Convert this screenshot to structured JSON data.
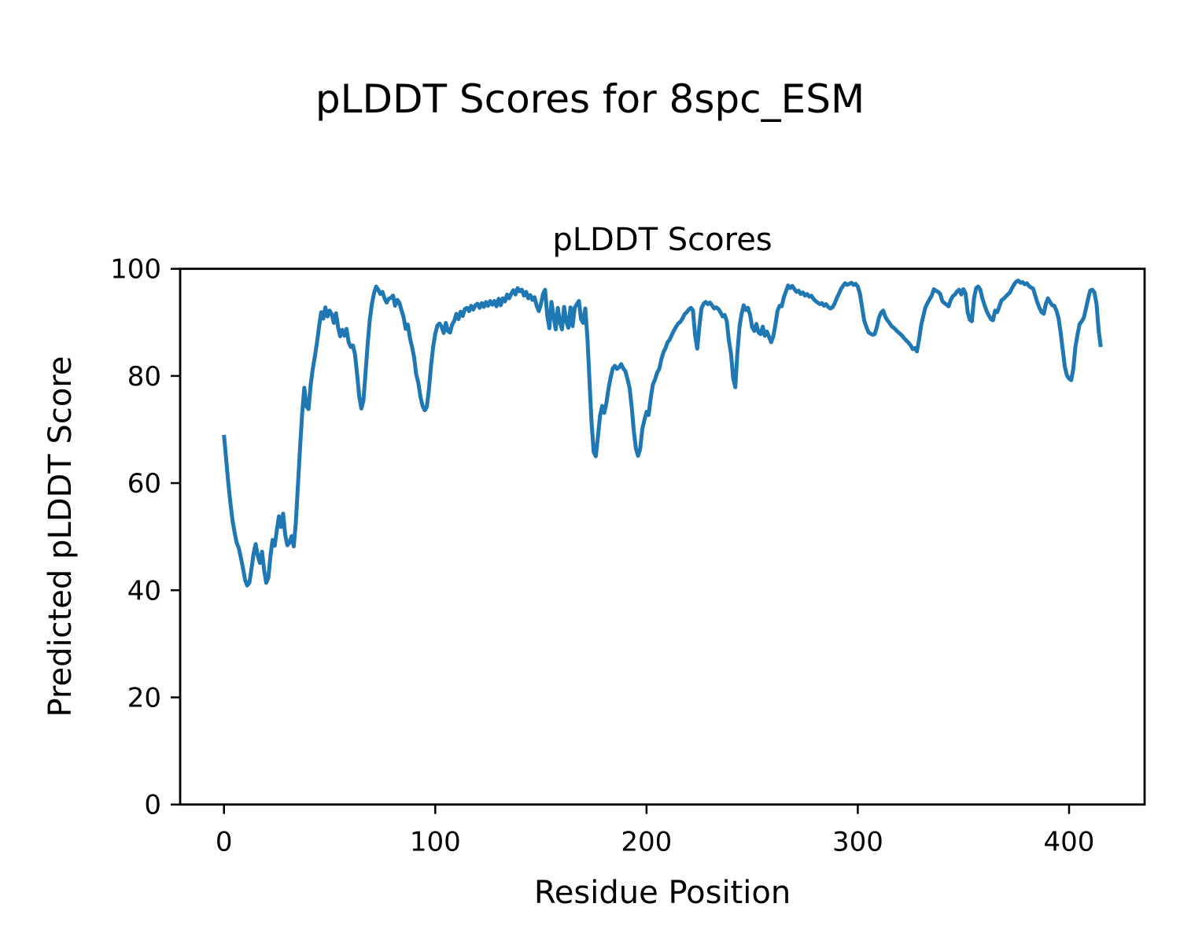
{
  "figure": {
    "suptitle": "pLDDT Scores for 8spc_ESM",
    "background": "#ffffff"
  },
  "chart_data": {
    "type": "line",
    "title": "pLDDT Scores",
    "xlabel": "Residue Position",
    "ylabel": "Predicted pLDDT Score",
    "xlim": [
      -20.75,
      435.75
    ],
    "ylim": [
      0,
      100
    ],
    "xticks": [
      0,
      100,
      200,
      300,
      400
    ],
    "yticks": [
      0,
      20,
      40,
      60,
      80,
      100
    ],
    "grid": false,
    "legend": null,
    "line_color": "#1f77b4",
    "line_width": 5,
    "series": [
      {
        "name": "pLDDT",
        "x0": 0,
        "dx": 1,
        "values": [
          69.0,
          64.6,
          60.2,
          56.4,
          53.1,
          50.8,
          48.9,
          47.9,
          46.1,
          44.1,
          41.9,
          40.9,
          41.4,
          43.9,
          46.8,
          48.6,
          46.4,
          45.1,
          47.2,
          43.7,
          41.4,
          42.3,
          46.4,
          49.4,
          48.3,
          51.2,
          53.8,
          51.8,
          54.3,
          50.3,
          48.4,
          48.9,
          50.1,
          48.2,
          52.5,
          59.5,
          66.5,
          73.0,
          77.8,
          74.3,
          73.8,
          78.2,
          81.2,
          83.6,
          86.2,
          89.2,
          91.9,
          90.7,
          92.8,
          91.1,
          92.2,
          91.5,
          89.9,
          91.7,
          89.1,
          87.4,
          88.6,
          87.5,
          88.8,
          86.3,
          85.4,
          85.7,
          84.1,
          80.4,
          76.3,
          73.9,
          75.4,
          80.6,
          86.0,
          90.4,
          93.4,
          95.4,
          96.7,
          96.1,
          95.3,
          95.7,
          94.5,
          93.7,
          94.4,
          94.6,
          95.0,
          93.1,
          94.2,
          93.7,
          92.3,
          91.0,
          88.8,
          89.6,
          87.1,
          85.4,
          83.5,
          80.3,
          78.7,
          76.1,
          74.4,
          73.6,
          74.2,
          77.4,
          81.9,
          85.4,
          87.9,
          89.4,
          89.8,
          89.2,
          88.0,
          89.9,
          88.4,
          88.1,
          89.6,
          90.3,
          91.6,
          90.6,
          92.0,
          91.2,
          92.5,
          92.7,
          92.1,
          93.1,
          92.4,
          93.2,
          93.5,
          92.7,
          93.6,
          92.9,
          93.8,
          93.1,
          94.0,
          93.3,
          94.0,
          93.0,
          94.4,
          93.2,
          94.5,
          93.9,
          95.2,
          94.5,
          95.4,
          96.0,
          95.2,
          96.4,
          95.8,
          96.1,
          95.0,
          95.7,
          94.5,
          95.1,
          94.2,
          94.7,
          93.1,
          92.1,
          93.4,
          95.3,
          96.1,
          91.4,
          88.9,
          93.8,
          91.1,
          88.7,
          92.7,
          90.1,
          88.7,
          92.9,
          90.2,
          89.0,
          92.8,
          89.3,
          92.7,
          93.4,
          94.0,
          90.6,
          89.9,
          92.6,
          87.2,
          79.3,
          71.3,
          65.8,
          65.0,
          68.7,
          72.6,
          74.4,
          73.1,
          74.9,
          77.6,
          79.7,
          81.4,
          81.9,
          81.3,
          81.6,
          82.2,
          81.4,
          80.9,
          79.4,
          77.7,
          74.1,
          69.7,
          66.4,
          65.1,
          66.4,
          70.1,
          71.8,
          73.3,
          72.7,
          75.9,
          78.4,
          79.3,
          80.6,
          81.3,
          83.1,
          84.4,
          85.2,
          86.3,
          86.8,
          87.7,
          88.5,
          89.2,
          89.8,
          90.1,
          90.7,
          91.5,
          91.9,
          92.4,
          92.7,
          92.2,
          87.6,
          85.1,
          89.2,
          92.6,
          93.5,
          93.8,
          93.4,
          93.7,
          93.2,
          92.6,
          92.8,
          92.5,
          91.9,
          91.1,
          91.4,
          90.2,
          86.6,
          84.1,
          79.6,
          77.9,
          84.2,
          89.1,
          91.6,
          93.2,
          92.3,
          92.7,
          91.4,
          89.1,
          88.4,
          89.7,
          88.1,
          87.8,
          89.2,
          87.5,
          88.3,
          87.3,
          86.3,
          87.4,
          89.6,
          92.2,
          93.1,
          93.0,
          94.7,
          95.8,
          96.9,
          96.4,
          96.8,
          96.2,
          95.7,
          95.9,
          95.3,
          95.6,
          95.0,
          95.3,
          94.8,
          95.0,
          94.4,
          94.0,
          93.7,
          93.4,
          93.6,
          93.1,
          93.4,
          92.9,
          92.6,
          92.8,
          93.5,
          94.5,
          95.3,
          96.2,
          96.8,
          97.3,
          97.0,
          97.2,
          97.4,
          97.0,
          97.2,
          96.7,
          95.4,
          92.9,
          90.4,
          89.2,
          88.2,
          87.9,
          87.7,
          87.8,
          89.1,
          90.9,
          91.8,
          92.2,
          91.1,
          90.4,
          89.9,
          89.3,
          89.0,
          88.6,
          88.2,
          87.9,
          87.5,
          87.0,
          86.6,
          86.2,
          85.7,
          85.0,
          85.2,
          84.6,
          86.8,
          89.5,
          91.2,
          92.8,
          93.6,
          94.3,
          95.0,
          96.2,
          95.9,
          95.7,
          95.3,
          94.0,
          93.6,
          93.3,
          93.0,
          94.2,
          94.9,
          95.2,
          95.8,
          96.1,
          95.2,
          96.2,
          95.4,
          91.9,
          90.5,
          90.2,
          94.4,
          96.4,
          96.7,
          96.1,
          94.4,
          93.2,
          92.1,
          91.3,
          90.6,
          90.4,
          92.2,
          91.9,
          93.0,
          94.1,
          94.4,
          94.8,
          95.2,
          95.6,
          96.4,
          97.1,
          97.6,
          97.8,
          97.4,
          97.5,
          97.1,
          97.3,
          96.8,
          96.5,
          96.3,
          95.0,
          93.7,
          92.7,
          91.9,
          91.6,
          93.4,
          94.5,
          93.8,
          93.2,
          93.1,
          92.2,
          90.8,
          88.2,
          84.9,
          81.7,
          80.1,
          79.5,
          79.2,
          81.4,
          85.4,
          87.7,
          89.7,
          90.2,
          90.9,
          92.6,
          94.4,
          95.9,
          96.1,
          95.6,
          93.4,
          88.5,
          85.4
        ]
      }
    ]
  }
}
